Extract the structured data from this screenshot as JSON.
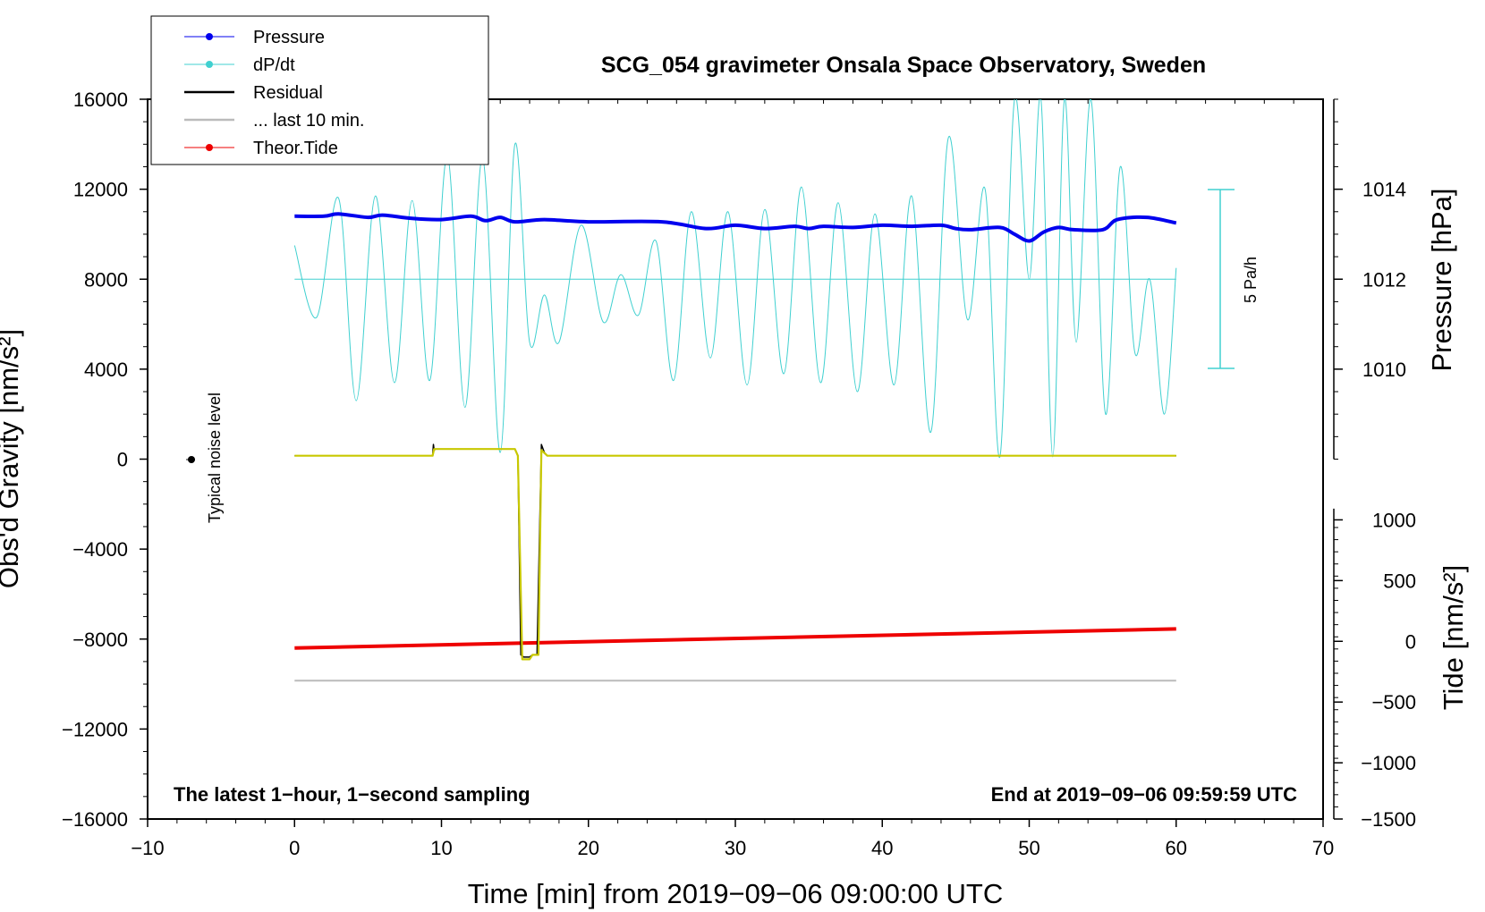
{
  "chart_data": {
    "type": "line",
    "title": "SCG_054 gravimeter Onsala Space Observatory, Sweden",
    "xlabel": "Time [min] from 2019−09−06 09:00:00 UTC",
    "ylabel_left": "Obs'd Gravity [nm/s²]",
    "ylabel_right_top": "Pressure [hPa]",
    "ylabel_right_bottom": "Tide [nm/s²]",
    "xlim": [
      -10,
      70
    ],
    "ylim_left": [
      -16000,
      16000
    ],
    "x_ticks": [
      "−10",
      "0",
      "10",
      "20",
      "30",
      "40",
      "50",
      "60",
      "70"
    ],
    "x_tick_values": [
      -10,
      0,
      10,
      20,
      30,
      40,
      50,
      60,
      70
    ],
    "y_left_ticks": [
      "16000",
      "12000",
      "8000",
      "4000",
      "0",
      "−4000",
      "−8000",
      "−12000",
      "−16000"
    ],
    "y_left_tick_values": [
      16000,
      12000,
      8000,
      4000,
      0,
      -4000,
      -8000,
      -12000,
      -16000
    ],
    "pressure_axis": {
      "ticks": [
        "1014",
        "1012",
        "1010"
      ],
      "tick_values": [
        1014,
        1012,
        1010
      ],
      "gravity_equivalent": [
        12000,
        8000,
        4000
      ]
    },
    "tide_axis": {
      "ticks": [
        "1000",
        "500",
        "0",
        "−500",
        "−1000",
        "−1500"
      ],
      "tick_values": [
        1000,
        500,
        0,
        -500,
        -1000,
        -1500
      ],
      "gravity_equivalent": [
        -2700,
        -5400,
        -8100,
        -10800,
        -13500,
        -16000
      ]
    },
    "legend": [
      {
        "label": "Pressure",
        "color": "#0000ee",
        "marker": true
      },
      {
        "label": "dP/dt",
        "color": "#40d0d0",
        "marker": true
      },
      {
        "label": "Residual",
        "color": "#000000",
        "marker": false
      },
      {
        "label": "... last 10 min.",
        "color": "#bbbbbb",
        "marker": false
      },
      {
        "label": "Theor.Tide",
        "color": "#ee0000",
        "marker": true
      }
    ],
    "series": [
      {
        "name": "Pressure",
        "color": "#0000ee",
        "x": [
          0,
          2,
          3,
          5,
          6,
          8,
          10,
          12,
          13,
          14,
          15,
          17,
          20,
          25,
          28,
          30,
          32,
          34,
          35,
          36,
          38,
          40,
          42,
          44,
          45,
          46,
          48,
          49,
          50,
          51,
          52,
          53,
          55,
          56,
          58,
          60
        ],
        "values": [
          10800,
          10800,
          10900,
          10750,
          10850,
          10700,
          10650,
          10800,
          10600,
          10750,
          10550,
          10650,
          10550,
          10550,
          10250,
          10400,
          10250,
          10350,
          10250,
          10350,
          10300,
          10400,
          10350,
          10400,
          10250,
          10200,
          10300,
          10000,
          9700,
          10100,
          10300,
          10200,
          10200,
          10650,
          10750,
          10500
        ]
      },
      {
        "name": "dP/dt",
        "color": "#40d0d0",
        "x": [
          0,
          1.5,
          3,
          4.2,
          5.5,
          6.8,
          8,
          9.2,
          10.4,
          11.6,
          12.8,
          14,
          15,
          16,
          17,
          18,
          19.5,
          21,
          22.2,
          23.4,
          24.6,
          25.8,
          27,
          28.3,
          29.5,
          30.8,
          32,
          33.3,
          34.5,
          35.8,
          37,
          38.3,
          39.5,
          40.8,
          42,
          43.3,
          44.5,
          45.8,
          47,
          48,
          49,
          50,
          50.8,
          51.6,
          52.4,
          53.2,
          54.2,
          55.2,
          56.2,
          57.2,
          58.2,
          59.2,
          60
        ],
        "values": [
          9500,
          6300,
          11600,
          2600,
          11700,
          3400,
          11500,
          3500,
          13500,
          2300,
          13400,
          300,
          14000,
          5200,
          7300,
          5200,
          10400,
          6100,
          8200,
          6400,
          9700,
          3500,
          11000,
          4500,
          11000,
          3300,
          11100,
          3800,
          12100,
          3400,
          11400,
          3000,
          10900,
          3300,
          11700,
          1200,
          14300,
          6200,
          12000,
          100,
          16000,
          8000,
          16000,
          100,
          16000,
          5200,
          16000,
          2000,
          13000,
          4700,
          8000,
          2000,
          8500
        ]
      },
      {
        "name": "dP/dt zero line",
        "color": "#40d0d0",
        "x": [
          0,
          60
        ],
        "values": [
          8000,
          8000
        ]
      },
      {
        "name": "Residual",
        "color": "#000000",
        "x": [
          0,
          9.4,
          9.45,
          9.5,
          9.6,
          15,
          15.2,
          15.4,
          15.6,
          16,
          16.2,
          16.5,
          16.8,
          17,
          17.2,
          60
        ],
        "values": [
          150,
          150,
          650,
          400,
          450,
          450,
          150,
          -8700,
          -8800,
          -8800,
          -8700,
          -8700,
          650,
          300,
          150,
          150
        ]
      },
      {
        "name": "Residual (yellow-green overlay)",
        "color": "#c8c800",
        "x": [
          0,
          9.4,
          9.5,
          15,
          15.2,
          15.5,
          16,
          16.2,
          16.6,
          16.8,
          17.2,
          60
        ],
        "values": [
          150,
          150,
          450,
          450,
          150,
          -8900,
          -8900,
          -8700,
          -8700,
          400,
          150,
          150
        ]
      },
      {
        "name": "... last 10 min.",
        "color": "#bbbbbb",
        "x": [
          0,
          60
        ],
        "values": [
          -9850,
          -9850
        ]
      },
      {
        "name": "Theor.Tide",
        "color": "#ee0000",
        "x": [
          0,
          60
        ],
        "values": [
          -8400,
          -7550
        ]
      }
    ],
    "noise_marker": {
      "x": -7,
      "y": 0,
      "label": "Typical noise level"
    },
    "scale_bar": {
      "label": "5 Pa/h",
      "y_top": 12000,
      "y_bottom": 4000,
      "x": 62
    }
  },
  "annotations": {
    "bottom_left": "The latest 1−hour, 1−second sampling",
    "bottom_right": "End at 2019−09−06 09:59:59 UTC"
  }
}
